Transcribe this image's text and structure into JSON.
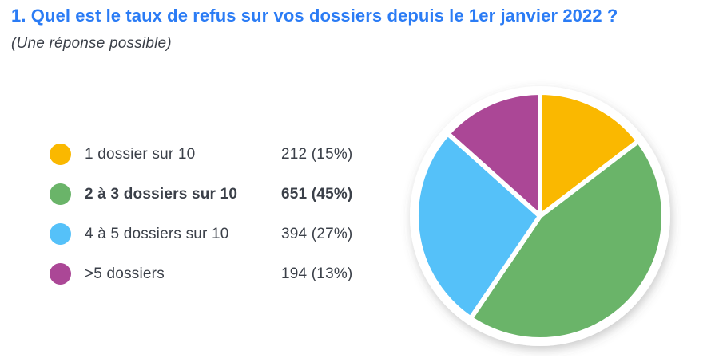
{
  "page": {
    "title": "1. Quel est le taux de refus sur vos dossiers depuis le 1er janvier 2022 ?",
    "subtitle": "(Une réponse possible)",
    "title_color": "#2B7CF5",
    "text_color": "#3B4049",
    "background_color": "#FFFFFF"
  },
  "chart_data": {
    "type": "pie",
    "title": "1. Quel est le taux de refus sur vos dossiers depuis le 1er janvier 2022 ?",
    "subtitle": "(Une réponse possible)",
    "legend_position": "left",
    "start_angle": "top",
    "direction": "clockwise",
    "separator_color": "#FFFFFF",
    "categories": [
      "1 dossier sur 10",
      "2 à 3 dossiers sur 10",
      "4 à 5 dossiers sur 10",
      ">5 dossiers"
    ],
    "values": [
      212,
      651,
      394,
      194
    ],
    "percents": [
      15,
      45,
      27,
      13
    ],
    "slices": [
      {
        "label": "1 dossier sur 10",
        "count": 212,
        "percent": 15,
        "display": "212 (15%)",
        "color": "#FAB800",
        "emphasized": false
      },
      {
        "label": "2 à 3 dossiers sur 10",
        "count": 651,
        "percent": 45,
        "display": "651 (45%)",
        "color": "#6AB469",
        "emphasized": true
      },
      {
        "label": "4 à 5 dossiers sur 10",
        "count": 394,
        "percent": 27,
        "display": "394 (27%)",
        "color": "#55C1F9",
        "emphasized": false
      },
      {
        "label": ">5 dossiers",
        "count": 194,
        "percent": 13,
        "display": "194 (13%)",
        "color": "#AB4796",
        "emphasized": false
      }
    ]
  }
}
